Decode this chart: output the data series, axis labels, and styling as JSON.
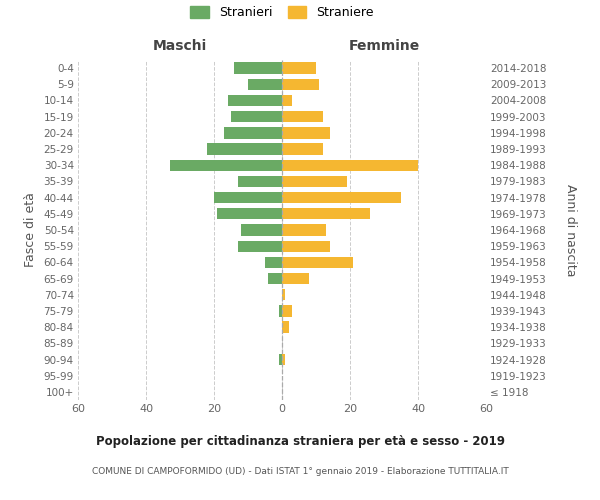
{
  "age_groups": [
    "100+",
    "95-99",
    "90-94",
    "85-89",
    "80-84",
    "75-79",
    "70-74",
    "65-69",
    "60-64",
    "55-59",
    "50-54",
    "45-49",
    "40-44",
    "35-39",
    "30-34",
    "25-29",
    "20-24",
    "15-19",
    "10-14",
    "5-9",
    "0-4"
  ],
  "birth_years": [
    "≤ 1918",
    "1919-1923",
    "1924-1928",
    "1929-1933",
    "1934-1938",
    "1939-1943",
    "1944-1948",
    "1949-1953",
    "1954-1958",
    "1959-1963",
    "1964-1968",
    "1969-1973",
    "1974-1978",
    "1979-1983",
    "1984-1988",
    "1989-1993",
    "1994-1998",
    "1999-2003",
    "2004-2008",
    "2009-2013",
    "2014-2018"
  ],
  "maschi": [
    0,
    0,
    1,
    0,
    0,
    1,
    0,
    4,
    5,
    13,
    12,
    19,
    20,
    13,
    33,
    22,
    17,
    15,
    16,
    10,
    14
  ],
  "femmine": [
    0,
    0,
    1,
    0,
    2,
    3,
    1,
    8,
    21,
    14,
    13,
    26,
    35,
    19,
    40,
    12,
    14,
    12,
    3,
    11,
    10
  ],
  "color_maschi": "#6aaa64",
  "color_femmine": "#f5b731",
  "title": "Popolazione per cittadinanza straniera per età e sesso - 2019",
  "subtitle": "COMUNE DI CAMPOFORMIDO (UD) - Dati ISTAT 1° gennaio 2019 - Elaborazione TUTTITALIA.IT",
  "xlabel_left": "Maschi",
  "xlabel_right": "Femmine",
  "ylabel_left": "Fasce di età",
  "ylabel_right": "Anni di nascita",
  "legend_maschi": "Stranieri",
  "legend_femmine": "Straniere",
  "xlim": 60,
  "background_color": "#ffffff",
  "grid_color": "#cccccc"
}
